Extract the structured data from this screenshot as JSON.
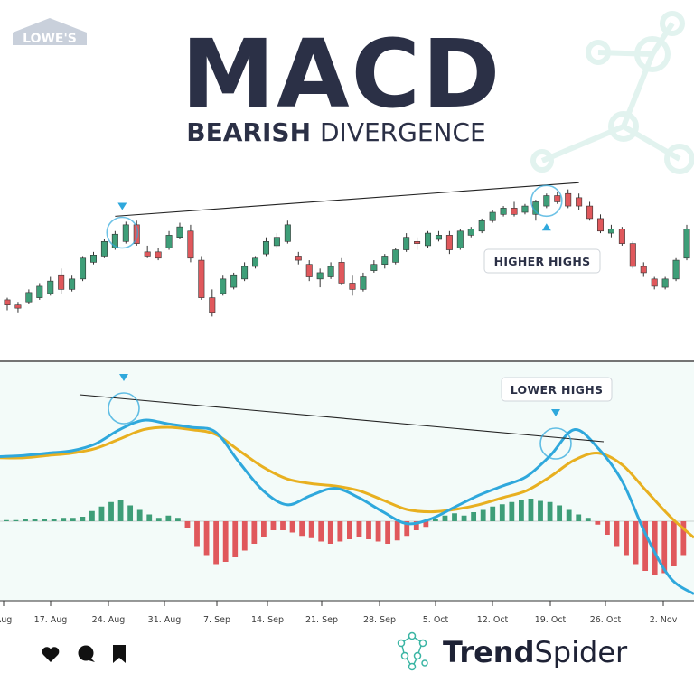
{
  "title": "MACD",
  "subtitle_bold": "BEARISH",
  "subtitle_light": "DIVERGENCE",
  "logo_text": "LOWE'S",
  "brand": {
    "part1": "Trend",
    "part2": "Spider"
  },
  "callouts": {
    "price": "HIGHER HIGHS",
    "macd": "LOWER HIGHS"
  },
  "icons": [
    "heart-icon",
    "comment-icon",
    "bookmark-icon",
    "spider-logo-icon"
  ],
  "colors": {
    "up": "#3e9e78",
    "down": "#e0585c",
    "macd": "#2fa8dc",
    "signal": "#e8b020",
    "text": "#2b3046",
    "marker": "#2fa8dc"
  },
  "chart_data": [
    {
      "type": "candlestick",
      "title": "",
      "x_ticks": [
        "Aug",
        "17. Aug",
        "24. Aug",
        "31. Aug",
        "7. Sep",
        "14. Sep",
        "21. Sep",
        "28. Sep",
        "5. Oct",
        "12. Oct",
        "19. Oct",
        "26. Oct",
        "2. Nov"
      ],
      "candles": [
        [
          0.2,
          0.22,
          0.1,
          0.15
        ],
        [
          0.15,
          0.18,
          0.08,
          0.12
        ],
        [
          0.18,
          0.3,
          0.16,
          0.27
        ],
        [
          0.22,
          0.36,
          0.2,
          0.33
        ],
        [
          0.26,
          0.42,
          0.24,
          0.38
        ],
        [
          0.44,
          0.5,
          0.26,
          0.3
        ],
        [
          0.3,
          0.44,
          0.28,
          0.4
        ],
        [
          0.4,
          0.62,
          0.38,
          0.6
        ],
        [
          0.56,
          0.66,
          0.54,
          0.63
        ],
        [
          0.62,
          0.78,
          0.6,
          0.76
        ],
        [
          0.7,
          0.86,
          0.68,
          0.83
        ],
        [
          0.76,
          0.95,
          0.74,
          0.92
        ],
        [
          0.92,
          0.96,
          0.72,
          0.74
        ],
        [
          0.66,
          0.72,
          0.6,
          0.62
        ],
        [
          0.66,
          0.7,
          0.58,
          0.6
        ],
        [
          0.7,
          0.86,
          0.68,
          0.82
        ],
        [
          0.8,
          0.94,
          0.78,
          0.9
        ],
        [
          0.86,
          0.92,
          0.56,
          0.6
        ],
        [
          0.58,
          0.62,
          0.2,
          0.22
        ],
        [
          0.22,
          0.3,
          0.04,
          0.08
        ],
        [
          0.26,
          0.44,
          0.24,
          0.4
        ],
        [
          0.32,
          0.46,
          0.3,
          0.44
        ],
        [
          0.4,
          0.56,
          0.38,
          0.52
        ],
        [
          0.52,
          0.62,
          0.5,
          0.6
        ],
        [
          0.64,
          0.8,
          0.62,
          0.76
        ],
        [
          0.72,
          0.84,
          0.7,
          0.8
        ],
        [
          0.76,
          0.96,
          0.74,
          0.92
        ],
        [
          0.62,
          0.66,
          0.54,
          0.58
        ],
        [
          0.54,
          0.58,
          0.38,
          0.42
        ],
        [
          0.4,
          0.5,
          0.32,
          0.46
        ],
        [
          0.42,
          0.56,
          0.4,
          0.52
        ],
        [
          0.56,
          0.6,
          0.34,
          0.36
        ],
        [
          0.36,
          0.44,
          0.24,
          0.3
        ],
        [
          0.3,
          0.46,
          0.28,
          0.42
        ],
        [
          0.48,
          0.58,
          0.46,
          0.54
        ],
        [
          0.54,
          0.64,
          0.5,
          0.62
        ],
        [
          0.56,
          0.7,
          0.54,
          0.68
        ],
        [
          0.68,
          0.84,
          0.66,
          0.8
        ],
        [
          0.76,
          0.8,
          0.68,
          0.74
        ],
        [
          0.72,
          0.86,
          0.7,
          0.84
        ],
        [
          0.78,
          0.86,
          0.76,
          0.82
        ],
        [
          0.82,
          0.86,
          0.64,
          0.68
        ],
        [
          0.7,
          0.88,
          0.68,
          0.86
        ],
        [
          0.82,
          0.9,
          0.8,
          0.88
        ],
        [
          0.86,
          0.98,
          0.84,
          0.96
        ],
        [
          0.96,
          1.06,
          0.94,
          1.04
        ],
        [
          1.02,
          1.1,
          1.0,
          1.08
        ],
        [
          1.08,
          1.14,
          1.0,
          1.02
        ],
        [
          1.04,
          1.12,
          1.02,
          1.1
        ],
        [
          1.02,
          1.16,
          0.96,
          1.14
        ],
        [
          1.1,
          1.22,
          1.08,
          1.2
        ],
        [
          1.2,
          1.24,
          1.12,
          1.14
        ],
        [
          1.22,
          1.26,
          1.08,
          1.1
        ],
        [
          1.18,
          1.22,
          1.06,
          1.1
        ],
        [
          1.1,
          1.14,
          0.96,
          0.98
        ],
        [
          0.98,
          1.02,
          0.84,
          0.86
        ],
        [
          0.84,
          0.92,
          0.8,
          0.88
        ],
        [
          0.88,
          0.9,
          0.72,
          0.74
        ],
        [
          0.74,
          0.76,
          0.5,
          0.52
        ],
        [
          0.52,
          0.56,
          0.42,
          0.46
        ],
        [
          0.4,
          0.42,
          0.3,
          0.33
        ],
        [
          0.32,
          0.42,
          0.3,
          0.4
        ],
        [
          0.4,
          0.6,
          0.38,
          0.58
        ],
        [
          0.6,
          0.92,
          0.58,
          0.88
        ]
      ],
      "annotations": [
        "HIGHER HIGHS"
      ]
    },
    {
      "type": "line",
      "series": [
        {
          "values": [
            0.55,
            0.56,
            0.58,
            0.6,
            0.66,
            0.78,
            0.86,
            0.83,
            0.8,
            0.76,
            0.5,
            0.26,
            0.14,
            0.22,
            0.28,
            0.2,
            0.08,
            -0.02,
            0.02,
            0.12,
            0.22,
            0.3,
            0.38,
            0.56,
            0.78,
            0.62,
            0.34,
            -0.12,
            -0.48,
            -0.62
          ]
        },
        {
          "values": [
            0.54,
            0.54,
            0.56,
            0.58,
            0.62,
            0.7,
            0.78,
            0.8,
            0.78,
            0.74,
            0.6,
            0.46,
            0.36,
            0.32,
            0.3,
            0.26,
            0.18,
            0.1,
            0.08,
            0.1,
            0.14,
            0.2,
            0.26,
            0.38,
            0.52,
            0.58,
            0.48,
            0.26,
            0.04,
            -0.14
          ]
        }
      ],
      "histogram": [
        0.01,
        0.01,
        0.02,
        0.02,
        0.02,
        0.02,
        0.03,
        0.03,
        0.04,
        0.09,
        0.13,
        0.17,
        0.19,
        0.14,
        0.1,
        0.06,
        0.03,
        0.05,
        0.03,
        -0.06,
        -0.22,
        -0.3,
        -0.38,
        -0.36,
        -0.32,
        -0.26,
        -0.2,
        -0.14,
        -0.08,
        -0.08,
        -0.1,
        -0.13,
        -0.15,
        -0.18,
        -0.2,
        -0.18,
        -0.16,
        -0.14,
        -0.16,
        -0.18,
        -0.2,
        -0.17,
        -0.13,
        -0.08,
        -0.05,
        0.02,
        0.05,
        0.07,
        0.05,
        0.08,
        0.1,
        0.13,
        0.15,
        0.17,
        0.19,
        0.2,
        0.18,
        0.17,
        0.14,
        0.1,
        0.06,
        0.03,
        -0.03,
        -0.12,
        -0.22,
        -0.3,
        -0.38,
        -0.44,
        -0.48,
        -0.46,
        -0.4,
        -0.3
      ],
      "annotations": [
        "LOWER HIGHS"
      ]
    }
  ]
}
